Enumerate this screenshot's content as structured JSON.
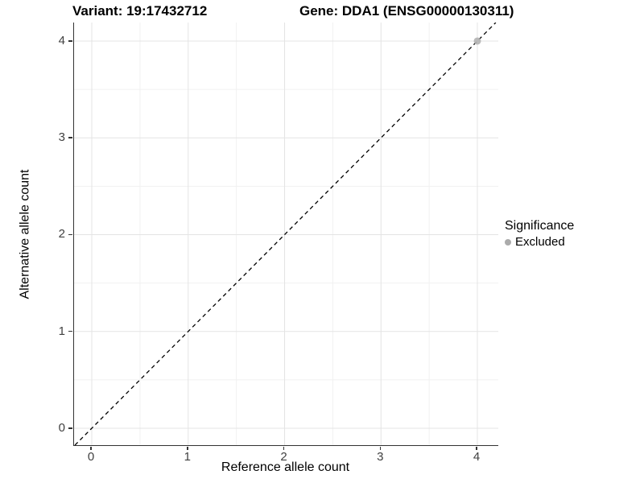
{
  "title": {
    "variant": "Variant: 19:17432712",
    "gene": "Gene: DDA1 (ENSG00000130311)"
  },
  "legend": {
    "title": "Significance",
    "items": [
      {
        "label": "Excluded",
        "color": "#ababab"
      }
    ]
  },
  "colors": {
    "axis_line": "#333333",
    "tick_label": "#404040",
    "grid_major": "#e4e4e4",
    "grid_minor": "#f1f1f1",
    "abline": "#000000",
    "point": "#b3b3b3"
  },
  "chart_data": {
    "type": "scatter",
    "title": "Variant: 19:17432712    Gene: DDA1 (ENSG00000130311)",
    "xlabel": "Reference allele count",
    "ylabel": "Alternative allele count",
    "xlim": [
      -0.184,
      4.217
    ],
    "ylim": [
      -0.175,
      4.191
    ],
    "x_ticks": [
      0,
      1,
      2,
      3,
      4
    ],
    "y_ticks": [
      0,
      1,
      2,
      3,
      4
    ],
    "x_minor_ticks": [
      0.5,
      1.5,
      2.5,
      3.5
    ],
    "y_minor_ticks": [
      0.5,
      1.5,
      2.5,
      3.5
    ],
    "grid": "major+minor",
    "legend_position": "right",
    "series": [
      {
        "name": "Excluded",
        "color": "#b3b3b3",
        "points": [
          {
            "x": 4,
            "y": 4
          }
        ]
      }
    ],
    "reference_line": {
      "kind": "abline",
      "slope": 1,
      "intercept": 0,
      "style": "dashed",
      "color": "#000000"
    }
  }
}
